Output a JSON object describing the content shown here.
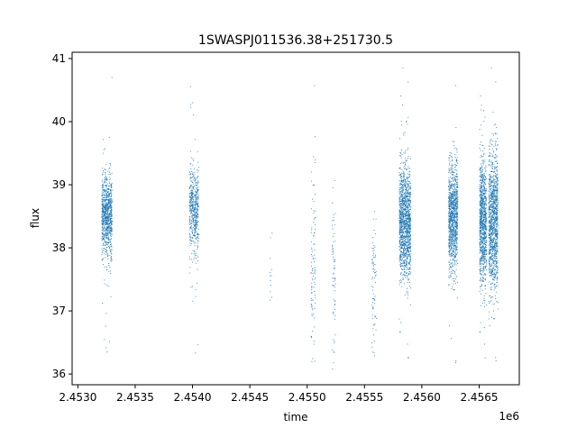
{
  "chart_data": {
    "type": "scatter",
    "title": "1SWASPJ011536.38+251730.5",
    "xlabel": "time",
    "ylabel": "flux",
    "x_offset_label": "1e6",
    "xlim": [
      2.45295,
      2.45685
    ],
    "ylim": [
      35.83,
      41.1
    ],
    "x_ticks": [
      2.453,
      2.4535,
      2.454,
      2.4545,
      2.455,
      2.4555,
      2.456,
      2.4565
    ],
    "x_tick_labels": [
      "2.4530",
      "2.4535",
      "2.4540",
      "2.4545",
      "2.4550",
      "2.4555",
      "2.4560",
      "2.4565"
    ],
    "y_ticks": [
      36,
      37,
      38,
      39,
      40,
      41
    ],
    "y_tick_labels": [
      "36",
      "37",
      "38",
      "39",
      "40",
      "41"
    ],
    "grid": false,
    "marker_color": "#1f77b4",
    "clusters": [
      {
        "x_center": 2.45325,
        "x_width": 9e-05,
        "y_center": 38.5,
        "y_spread": 0.33,
        "count": 900
      },
      {
        "x_center": 2.45401,
        "x_width": 8e-05,
        "y_center": 38.6,
        "y_spread": 0.32,
        "count": 550
      },
      {
        "x_center": 2.45468,
        "x_width": 2e-05,
        "y_center": 37.6,
        "y_spread": 0.5,
        "count": 12
      },
      {
        "x_center": 2.45505,
        "x_width": 4e-05,
        "y_center": 37.5,
        "y_spread": 0.9,
        "count": 110
      },
      {
        "x_center": 2.45523,
        "x_width": 3e-05,
        "y_center": 37.5,
        "y_spread": 0.7,
        "count": 70
      },
      {
        "x_center": 2.45558,
        "x_width": 4e-05,
        "y_center": 37.4,
        "y_spread": 0.6,
        "count": 80
      },
      {
        "x_center": 2.45585,
        "x_width": 0.0001,
        "y_center": 38.4,
        "y_spread": 0.45,
        "count": 1400
      },
      {
        "x_center": 2.45627,
        "x_width": 8e-05,
        "y_center": 38.5,
        "y_spread": 0.42,
        "count": 1100
      },
      {
        "x_center": 2.45653,
        "x_width": 6e-05,
        "y_center": 38.4,
        "y_spread": 0.5,
        "count": 1000
      },
      {
        "x_center": 2.45662,
        "x_width": 8e-05,
        "y_center": 38.4,
        "y_spread": 0.55,
        "count": 1200
      }
    ]
  }
}
